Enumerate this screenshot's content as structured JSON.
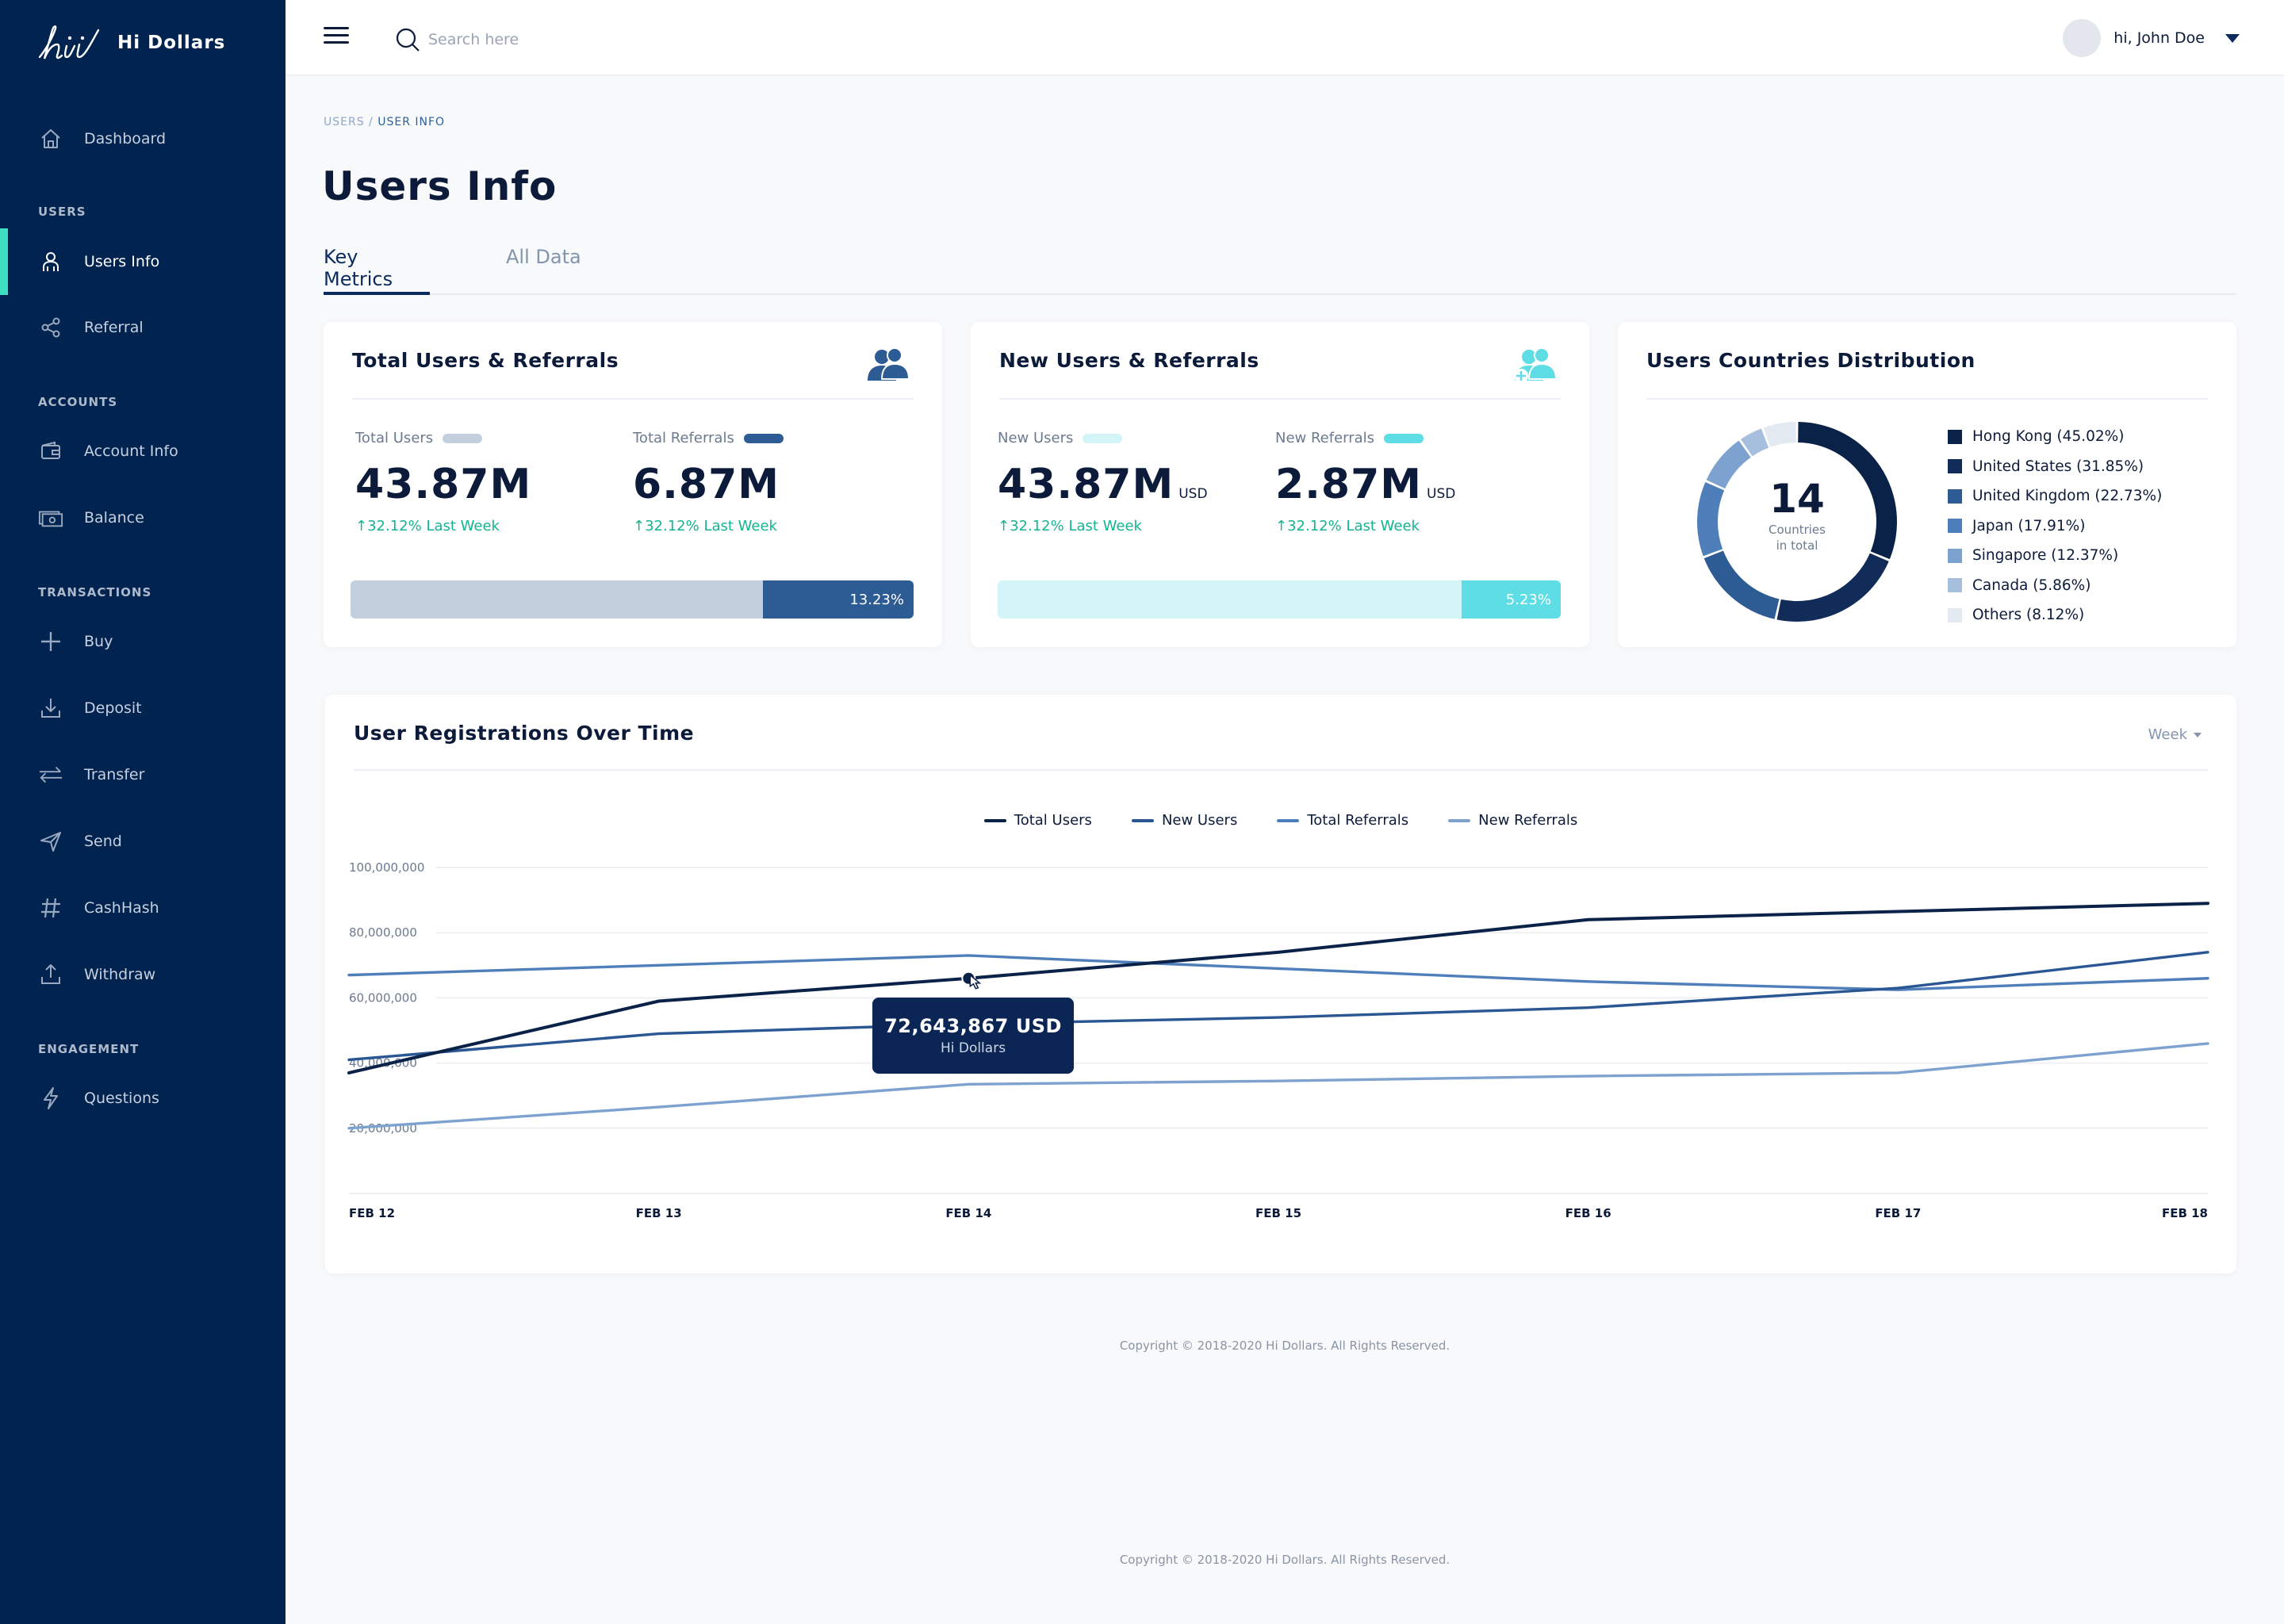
{
  "brand": {
    "name": "Hi Dollars"
  },
  "sidebar": {
    "dashboard": "Dashboard",
    "sections": [
      "USERS",
      "ACCOUNTS",
      "TRANSACTIONS",
      "ENGAGEMENT"
    ],
    "items": [
      {
        "label": "Users Info",
        "icon": "user-icon"
      },
      {
        "label": "Referral",
        "icon": "share-icon"
      },
      {
        "label": "Account Info",
        "icon": "wallet-icon"
      },
      {
        "label": "Balance",
        "icon": "cash-icon"
      },
      {
        "label": "Buy",
        "icon": "plus-icon"
      },
      {
        "label": "Deposit",
        "icon": "download-icon"
      },
      {
        "label": "Transfer",
        "icon": "transfer-icon"
      },
      {
        "label": "Send",
        "icon": "send-icon"
      },
      {
        "label": "CashHash",
        "icon": "hash-icon"
      },
      {
        "label": "Withdraw",
        "icon": "upload-icon"
      },
      {
        "label": "Questions",
        "icon": "lightning-icon"
      }
    ],
    "accent_color": "#3ee0c3"
  },
  "header": {
    "search_placeholder": "Search here",
    "user_greeting": "hi, John Doe"
  },
  "breadcrumb": {
    "parent": "USERS",
    "separator": " / ",
    "current": "USER INFO"
  },
  "page": {
    "title": "Users Info",
    "tabs": [
      {
        "label": "Key Metrics"
      },
      {
        "label": "All Data"
      }
    ]
  },
  "cards": {
    "total": {
      "title": "Total Users & Referrals",
      "users_label": "Total Users",
      "users_value": "43.87M",
      "users_change": "↑32.12% Last Week",
      "referrals_label": "Total Referrals",
      "referrals_value": "6.87M",
      "referrals_change": "↑32.12% Last Week",
      "bar_percent_label": "13.23%",
      "bar_fraction": 0.2677,
      "colors": {
        "light": "#c4cfdd",
        "dark": "#2d5b94"
      }
    },
    "new": {
      "title": "New Users & Referrals",
      "users_label": "New Users",
      "users_value": "43.87M",
      "users_unit": "USD",
      "users_change": "↑32.12% Last Week",
      "referrals_label": "New Referrals",
      "referrals_value": "2.87M",
      "referrals_unit": "USD",
      "referrals_change": "↑32.12% Last Week",
      "bar_percent_label": "5.23%",
      "bar_fraction": 0.176,
      "colors": {
        "light": "#d3f5f7",
        "dark": "#5edde5"
      }
    },
    "countries": {
      "title": "Users Countries Distribution",
      "total": "14",
      "total_sub_1": "Countries",
      "total_sub_2": "in total"
    }
  },
  "countries": [
    {
      "label": "Hong Kong (45.02%)",
      "value": 45.02,
      "color": "#0a2148"
    },
    {
      "label": "United States (31.85%)",
      "value": 31.85,
      "color": "#112c59"
    },
    {
      "label": "United Kingdom (22.73%)",
      "value": 22.73,
      "color": "#2d5b94"
    },
    {
      "label": "Japan (17.91%)",
      "value": 17.91,
      "color": "#4f7fbb"
    },
    {
      "label": "Singapore (12.37%)",
      "value": 12.37,
      "color": "#7ea2cf"
    },
    {
      "label": "Canada (5.86%)",
      "value": 5.86,
      "color": "#a6bfdd"
    },
    {
      "label": "Others (8.12%)",
      "value": 8.12,
      "color": "#e3e9f1"
    }
  ],
  "registrations": {
    "title": "User Registrations Over Time",
    "period": "Week",
    "tooltip_value": "72,643,867 USD",
    "tooltip_sub": "Hi Dollars"
  },
  "footer": {
    "copyright": "Copyright © 2018-2020 Hi Dollars. All Rights Reserved."
  },
  "chart_data": {
    "type": "line",
    "title": "User Registrations Over Time",
    "categories": [
      "FEB 12",
      "FEB 13",
      "FEB 14",
      "FEB 15",
      "FEB 16",
      "FEB 17",
      "FEB 18"
    ],
    "y_tick_labels": [
      "100,000,000",
      "80,000,000",
      "60,000,000",
      "40,000,000",
      "20,000,000"
    ],
    "ylim": [
      0,
      100000000
    ],
    "grid": true,
    "legend_position": "top-center",
    "series": [
      {
        "name": "Total Users",
        "color": "#0a2148",
        "values": [
          37000000,
          59000000,
          66000000,
          74000000,
          84000000,
          86500000,
          89000000
        ]
      },
      {
        "name": "New Users",
        "color": "#2a5694",
        "values": [
          41000000,
          49000000,
          52000000,
          54000000,
          57000000,
          63000000,
          74000000
        ]
      },
      {
        "name": "Total Referrals",
        "color": "#4f7fbb",
        "values": [
          67000000,
          70000000,
          73000000,
          69000000,
          65000000,
          62500000,
          66000000
        ]
      },
      {
        "name": "New Referrals",
        "color": "#7ea2cf",
        "values": [
          20000000,
          26500000,
          33500000,
          34500000,
          36000000,
          37000000,
          46000000
        ]
      }
    ]
  }
}
